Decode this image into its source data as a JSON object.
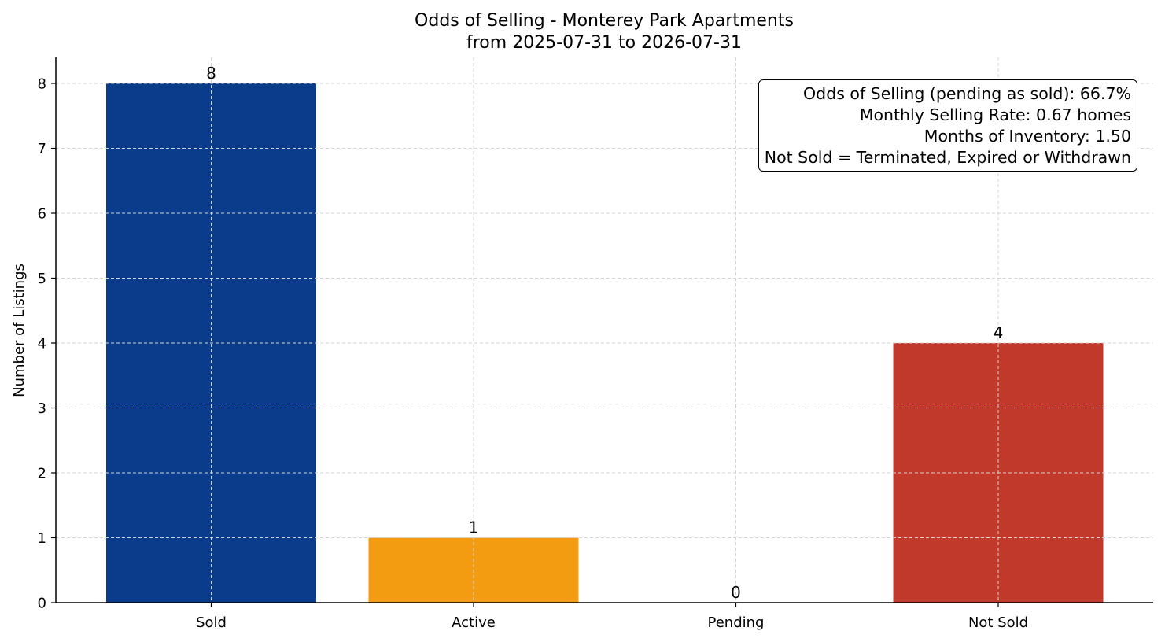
{
  "chart_data": {
    "type": "bar",
    "title": "Odds of Selling - Monterey Park Apartments",
    "subtitle": "from 2025-07-31 to 2026-07-31",
    "xlabel": "",
    "ylabel": "Number of Listings",
    "categories": [
      "Sold",
      "Active",
      "Pending",
      "Not Sold"
    ],
    "values": [
      8,
      1,
      0,
      4
    ],
    "colors": [
      "#0b3c8c",
      "#f39c12",
      "#2e8b57",
      "#c0392b"
    ],
    "ylim": [
      0,
      8.4
    ],
    "yticks": [
      0,
      1,
      2,
      3,
      4,
      5,
      6,
      7,
      8
    ],
    "grid": true,
    "data_labels": true,
    "annotations": [
      "Odds of Selling (pending as sold): 66.7%",
      "Monthly Selling Rate: 0.67 homes",
      "Months of Inventory: 1.50",
      "Not Sold = Terminated, Expired or Withdrawn"
    ]
  }
}
